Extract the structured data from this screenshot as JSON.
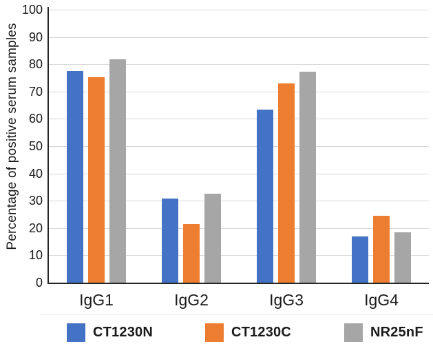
{
  "chart_data": {
    "type": "bar",
    "title": "",
    "xlabel": "",
    "ylabel": "Percentage of positive serum samples",
    "ylim": [
      0,
      100
    ],
    "yticks": [
      0,
      10,
      20,
      30,
      40,
      50,
      60,
      70,
      80,
      90,
      100
    ],
    "grid": true,
    "legend_position": "bottom",
    "categories": [
      "IgG1",
      "IgG2",
      "IgG3",
      "IgG4"
    ],
    "series": [
      {
        "name": "CT1230N",
        "color": "#4472C4",
        "values": [
          77.5,
          30.8,
          63.5,
          16.9
        ]
      },
      {
        "name": "CT1230C",
        "color": "#ED7D31",
        "values": [
          75.3,
          21.4,
          73.0,
          24.6
        ]
      },
      {
        "name": "NR25nF",
        "color": "#A6A6A6",
        "values": [
          81.7,
          32.6,
          77.4,
          18.4
        ]
      }
    ],
    "colors": {
      "axis": "#262626",
      "gridline": "#d9d9d9",
      "text": "#1a1a1a",
      "background": "#ffffff"
    }
  }
}
